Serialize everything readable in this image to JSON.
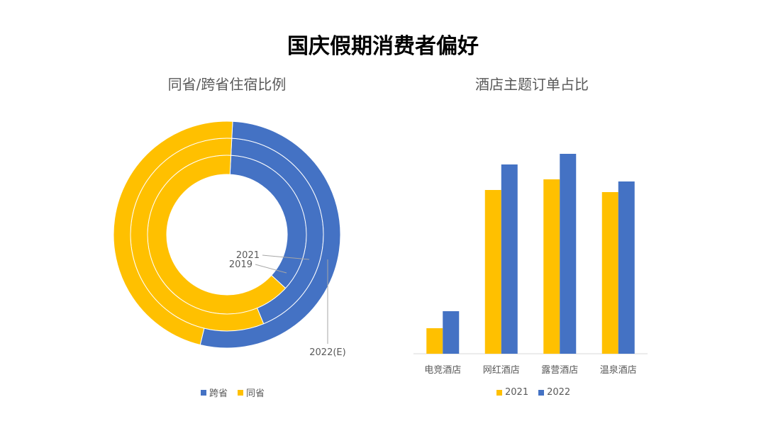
{
  "title": "国庆假期消费者偏好",
  "colors": {
    "blue": "#4472C4",
    "yellow": "#FFC000"
  },
  "chart_data": [
    {
      "type": "donut",
      "title": "同省/跨省住宿比例",
      "rings": [
        "2019",
        "2021",
        "2022(E)"
      ],
      "series": [
        {
          "name": "跨省",
          "values": [
            36,
            43,
            53
          ]
        },
        {
          "name": "同省",
          "values": [
            64,
            57,
            47
          ]
        }
      ],
      "ring_labels": [
        "2019",
        "2021",
        "2022(E)"
      ],
      "legend": [
        "跨省",
        "同省"
      ],
      "legend_position": "bottom"
    },
    {
      "type": "bar",
      "title": "酒店主题订单占比",
      "categories": [
        "电竞酒店",
        "网红酒店",
        "露营酒店",
        "温泉酒店"
      ],
      "series": [
        {
          "name": "2021",
          "values": [
            12,
            77,
            82,
            76
          ]
        },
        {
          "name": "2022",
          "values": [
            20,
            89,
            94,
            81
          ]
        }
      ],
      "ylim": [
        0,
        100
      ],
      "legend": [
        "2021",
        "2022"
      ],
      "legend_position": "bottom"
    }
  ]
}
